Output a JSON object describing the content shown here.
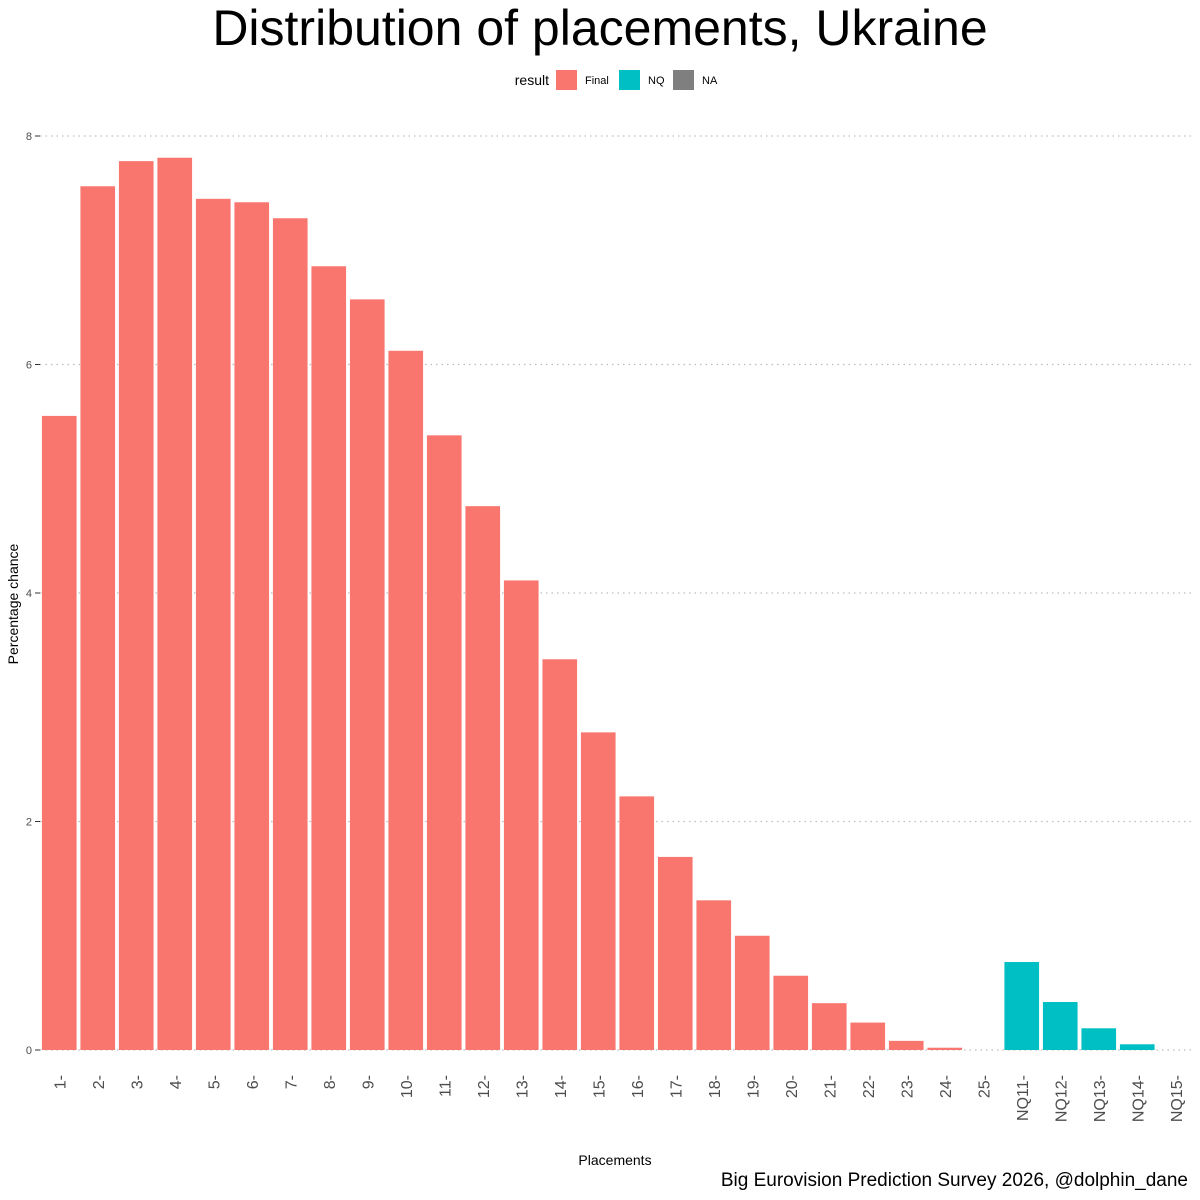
{
  "chart_data": {
    "type": "bar",
    "title": "Distribution of placements, Ukraine",
    "xlabel": "Placements",
    "ylabel": "Percentage chance",
    "ylim": [
      0,
      8
    ],
    "yticks": [
      0,
      2,
      4,
      6,
      8
    ],
    "grid": "horizontal dotted",
    "legend": {
      "title": "result",
      "placement": "top",
      "entries": [
        {
          "label": "Final",
          "color": "#F8766D"
        },
        {
          "label": "NQ",
          "color": "#00BFC4"
        },
        {
          "label": "NA",
          "color": "#7F7F7F"
        }
      ]
    },
    "categories": [
      "1-",
      "2-",
      "3-",
      "4-",
      "5-",
      "6-",
      "7-",
      "8-",
      "9-",
      "10-",
      "11-",
      "12-",
      "13-",
      "14-",
      "15-",
      "16-",
      "17-",
      "18-",
      "19-",
      "20-",
      "21-",
      "22-",
      "23-",
      "24-",
      "25-",
      "NQ11-",
      "NQ12-",
      "NQ13-",
      "NQ14-",
      "NQ15-"
    ],
    "values": [
      5.55,
      7.56,
      7.78,
      7.81,
      7.45,
      7.42,
      7.28,
      6.86,
      6.57,
      6.12,
      5.38,
      4.76,
      4.11,
      3.42,
      2.78,
      2.22,
      1.69,
      1.31,
      1.0,
      0.65,
      0.41,
      0.24,
      0.08,
      0.02,
      0,
      0.77,
      0.42,
      0.19,
      0.05,
      0
    ],
    "result": [
      "Final",
      "Final",
      "Final",
      "Final",
      "Final",
      "Final",
      "Final",
      "Final",
      "Final",
      "Final",
      "Final",
      "Final",
      "Final",
      "Final",
      "Final",
      "Final",
      "Final",
      "Final",
      "Final",
      "Final",
      "Final",
      "Final",
      "Final",
      "Final",
      "Final",
      "NQ",
      "NQ",
      "NQ",
      "NQ",
      "NQ"
    ]
  },
  "caption": "Big Eurovision Prediction Survey 2026, @dolphin_dane"
}
